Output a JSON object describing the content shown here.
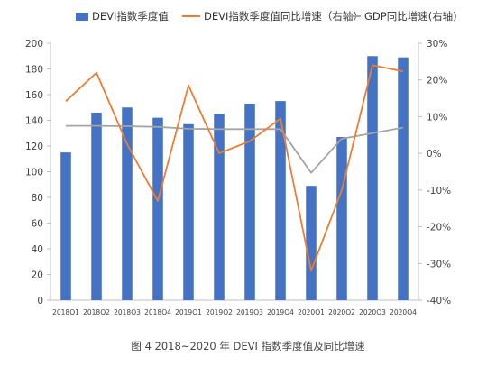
{
  "chart_data": {
    "type": "bar",
    "categories": [
      "2018Q1",
      "2018Q2",
      "2018Q3",
      "2018Q4",
      "2019Q1",
      "2019Q2",
      "2019Q3",
      "2019Q4",
      "2020Q1",
      "2020Q2",
      "2020Q3",
      "2020Q4"
    ],
    "series": [
      {
        "name": "DEVI指数季度值",
        "type": "bar",
        "axis": "left",
        "color": "#4472c4",
        "values": [
          115,
          146,
          150,
          142,
          137,
          145,
          153,
          155,
          89,
          127,
          190,
          189
        ]
      },
      {
        "name": "DEVI指数季度值同比增速（右轴）",
        "type": "line",
        "axis": "right",
        "color": "#ed7d31",
        "values": [
          14.2,
          22,
          2.5,
          -13,
          18.5,
          0,
          3.3,
          9.5,
          -32,
          -10,
          24,
          22.3
        ]
      },
      {
        "name": "GDP同比增速(右轴)",
        "type": "line",
        "axis": "right",
        "color": "#a5a5a5",
        "values": [
          7.5,
          7.5,
          7.4,
          7.2,
          6.7,
          6.6,
          6.6,
          6.6,
          -5.3,
          4.0,
          5.5,
          7.0
        ]
      }
    ],
    "y_left": {
      "min": 0,
      "max": 200,
      "step": 20,
      "ticks": [
        "0",
        "20",
        "40",
        "60",
        "80",
        "100",
        "120",
        "140",
        "160",
        "180",
        "200"
      ]
    },
    "y_right": {
      "min": -40,
      "max": 30,
      "step": 10,
      "ticks": [
        "-40%",
        "-30%",
        "-20%",
        "-10%",
        "0%",
        "10%",
        "20%",
        "30%"
      ]
    },
    "grid": false,
    "legend_position": "top"
  },
  "caption": "图 4 2018~2020 年 DEVI 指数季度值及同比增速"
}
